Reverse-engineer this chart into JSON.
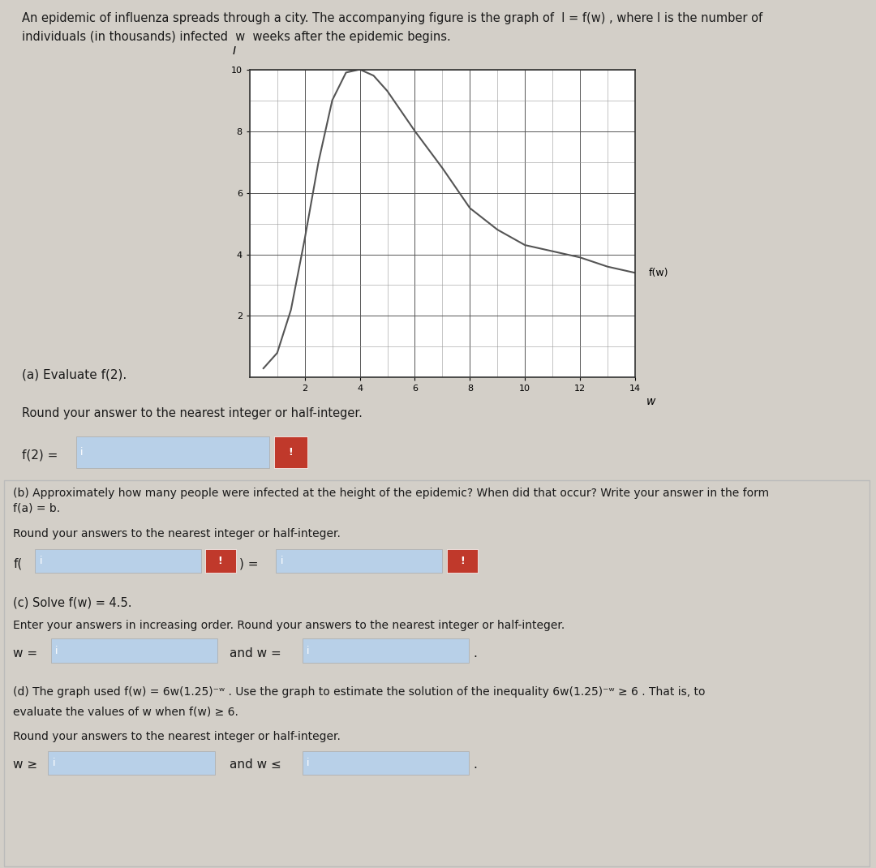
{
  "bg_color": "#d3cfc8",
  "panel1_bg": "#d3cfc8",
  "panel2_bg": "#f0efed",
  "text_color": "#1a1a1a",
  "intro_text_line1": "An epidemic of influenza spreads through a city. The accompanying figure is the graph of  I = f(w) , where I is the number of",
  "intro_text_line2": "individuals (in thousands) infected  w  weeks after the epidemic begins.",
  "graph_curve_color": "#555555",
  "graph_curve_w": [
    0.5,
    1.0,
    1.5,
    2.0,
    2.5,
    3.0,
    3.5,
    4.0,
    4.5,
    5.0,
    6.0,
    7.0,
    8.0,
    9.0,
    10.0,
    11.0,
    12.0,
    13.0,
    14.0
  ],
  "graph_curve_I": [
    0.3,
    0.8,
    2.2,
    4.5,
    7.0,
    9.0,
    9.9,
    10.0,
    9.8,
    9.3,
    8.0,
    6.8,
    5.5,
    4.8,
    4.3,
    4.1,
    3.9,
    3.6,
    3.4
  ],
  "graph_xlabel": "w",
  "graph_ylabel": "I",
  "graph_label": "f(w)",
  "graph_xlim": [
    0,
    14
  ],
  "graph_ylim": [
    0,
    10
  ],
  "graph_xticks": [
    2,
    4,
    6,
    8,
    10,
    12,
    14
  ],
  "graph_yticks": [
    2,
    4,
    6,
    8,
    10
  ],
  "part_a_text": "(a) Evaluate f(2).",
  "part_a_round": "Round your answer to the nearest integer or half-integer.",
  "part_a_label": "f(2) =",
  "part_b_header_line1": "(b) Approximately how many people were infected at the height of the epidemic? When did that occur? Write your answer in the form",
  "part_b_header_line2": "f(a) = b.",
  "part_b_round": "Round your answers to the nearest integer or half-integer.",
  "part_b_label": "f(",
  "part_b_eq": ") =",
  "part_c_text": "(c) Solve f(w) = 4.5.",
  "part_c_round": "Enter your answers in increasing order. Round your answers to the nearest integer or half-integer.",
  "part_c_w1": "w =",
  "part_c_and": "and w =",
  "part_d_line1": "(d) The graph used f(w) = 6w(1.25)",
  "part_d_line1b": " . Use the graph to estimate the solution of the inequality 6w(1.25)",
  "part_d_line1c": " ≥ 6 . That is, to",
  "part_d_line2": "evaluate the values of w when f(w) ≥ 6.",
  "part_d_round": "Round your answers to the nearest integer or half-integer.",
  "part_d_w_ge": "w ≥",
  "part_d_and": "and w ≤",
  "input_bg": "#7da7d9",
  "input_bg_light": "#b8d0e8",
  "red_btn_color": "#c0392b",
  "blue_box_color": "#4a6fa5",
  "panel_border": "#cccccc"
}
